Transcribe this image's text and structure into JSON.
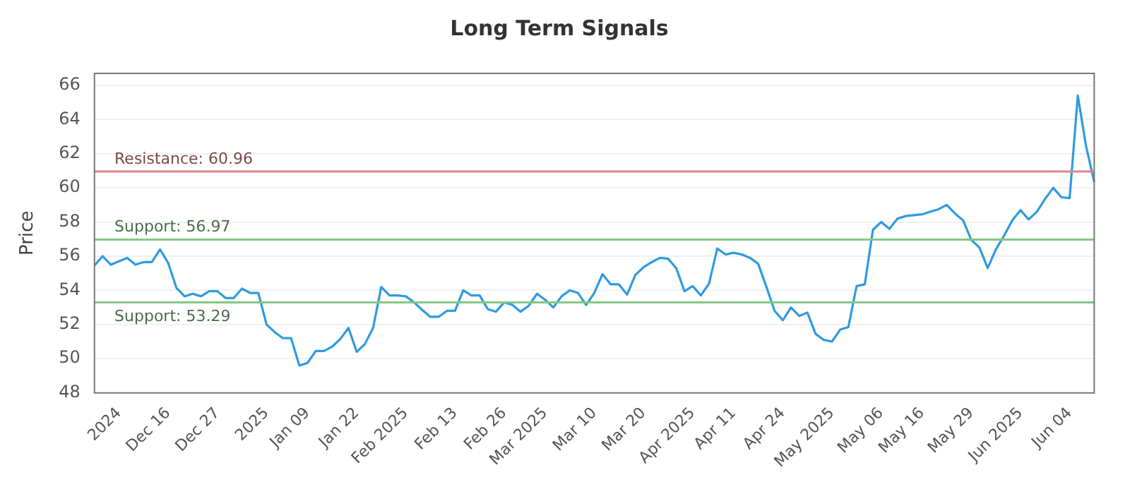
{
  "chart_data": {
    "type": "line",
    "title": "Long Term Signals",
    "ylabel": "Price",
    "categories": [
      null,
      null,
      null,
      "2024",
      null,
      null,
      null,
      null,
      null,
      "Dec 16",
      null,
      null,
      null,
      null,
      null,
      "Dec 27",
      null,
      null,
      null,
      null,
      null,
      "2025",
      null,
      null,
      null,
      null,
      "Jan 09",
      null,
      null,
      null,
      null,
      null,
      "Jan 22",
      null,
      null,
      null,
      null,
      null,
      "Feb 2025",
      null,
      null,
      null,
      null,
      null,
      "Feb 13",
      null,
      null,
      null,
      null,
      null,
      "Feb 26",
      null,
      null,
      null,
      null,
      "Mar 2025",
      null,
      null,
      null,
      null,
      null,
      "Mar 10",
      null,
      null,
      null,
      null,
      null,
      "Mar 20",
      null,
      null,
      null,
      null,
      null,
      "Apr 2025",
      null,
      null,
      null,
      null,
      "Apr 11",
      null,
      null,
      null,
      null,
      null,
      "Apr 24",
      null,
      null,
      null,
      null,
      null,
      "May 2025",
      null,
      null,
      null,
      null,
      null,
      "May 06",
      null,
      null,
      null,
      null,
      "May 16",
      null,
      null,
      null,
      null,
      null,
      "May 29",
      null,
      null,
      null,
      null,
      null,
      "Jun 2025",
      null,
      null,
      null,
      null,
      null,
      "Jun 04",
      null,
      null,
      null
    ],
    "series": [
      {
        "color": "#2f9be0",
        "values": [
          55.45,
          56.0,
          55.5,
          55.7,
          55.9,
          55.5,
          55.65,
          55.65,
          56.4,
          55.6,
          54.15,
          53.65,
          53.8,
          53.65,
          53.95,
          53.95,
          53.55,
          53.55,
          54.1,
          53.85,
          53.85,
          52.0,
          51.55,
          51.2,
          51.2,
          49.6,
          49.75,
          50.45,
          50.45,
          50.7,
          51.15,
          51.8,
          50.4,
          50.85,
          51.8,
          54.2,
          53.7,
          53.7,
          53.65,
          53.3,
          52.85,
          52.45,
          52.45,
          52.8,
          52.8,
          54.0,
          53.7,
          53.7,
          52.9,
          52.75,
          53.3,
          53.15,
          52.75,
          53.1,
          53.8,
          53.45,
          53.0,
          53.65,
          54.0,
          53.85,
          53.15,
          53.85,
          54.95,
          54.35,
          54.35,
          53.75,
          54.9,
          55.35,
          55.65,
          55.9,
          55.85,
          55.3,
          53.95,
          54.25,
          53.7,
          54.4,
          56.45,
          56.1,
          56.2,
          56.1,
          55.9,
          55.55,
          54.2,
          52.8,
          52.25,
          53.0,
          52.5,
          52.7,
          51.45,
          51.1,
          51.0,
          51.7,
          51.85,
          54.25,
          54.35,
          57.55,
          58.0,
          57.6,
          58.2,
          58.35,
          58.4,
          58.45,
          58.6,
          58.75,
          59.0,
          58.5,
          58.1,
          56.95,
          56.5,
          55.3,
          56.4,
          57.2,
          58.1,
          58.7,
          58.15,
          58.6,
          59.35,
          60.0,
          59.45,
          59.4,
          65.4,
          62.45,
          60.35
        ]
      }
    ],
    "ylim": [
      48,
      66.7
    ],
    "yticks": [
      48,
      50,
      52,
      54,
      56,
      58,
      60,
      62,
      64,
      66
    ],
    "ref_lines": [
      {
        "axis": "y",
        "value": 60.96,
        "label": "Resistance: 60.96",
        "color": "#e08585"
      },
      {
        "axis": "y",
        "value": 56.97,
        "label": "Support: 56.97",
        "color": "#85c785"
      },
      {
        "axis": "y",
        "value": 53.29,
        "label": "Support: 53.29",
        "color": "#85c785"
      }
    ],
    "grid": "y",
    "legend": false,
    "marker": "none",
    "line_style": "solid"
  }
}
